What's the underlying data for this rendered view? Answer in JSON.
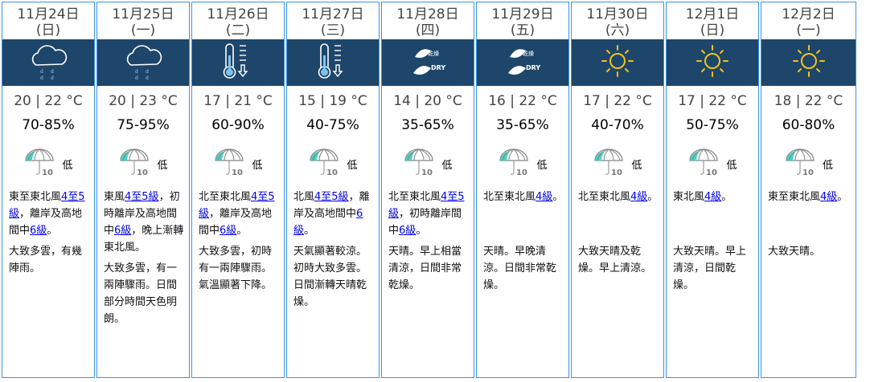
{
  "days": [
    {
      "date": "11月24日",
      "weekday": "(日)",
      "icon": "rain-cloud-icon",
      "temp": "20 | 22 °C",
      "humidity": "70-85%",
      "psr": "低",
      "wind": [
        {
          "t": "東至東北風"
        },
        {
          "t": "4至5級",
          "link": true
        },
        {
          "t": "，離岸及高地間中"
        },
        {
          "t": "6級",
          "link": true
        },
        {
          "t": "。"
        }
      ],
      "weather": "大致多雲，有幾陣雨。"
    },
    {
      "date": "11月25日",
      "weekday": "(一)",
      "icon": "rain-cloud-icon",
      "temp": "20 | 23 °C",
      "humidity": "75-95%",
      "psr": "低",
      "wind": [
        {
          "t": "東風"
        },
        {
          "t": "4至5級",
          "link": true
        },
        {
          "t": "，初時離岸及高地間中"
        },
        {
          "t": "6級",
          "link": true
        },
        {
          "t": "，晚上漸轉東北風。"
        }
      ],
      "weather": "大致多雲，有一兩陣驟雨。日間部分時間天色明朗。"
    },
    {
      "date": "11月26日",
      "weekday": "(二)",
      "icon": "cold-thermometer-icon",
      "temp": "17 | 21 °C",
      "humidity": "60-90%",
      "psr": "低",
      "wind": [
        {
          "t": "北至東北風"
        },
        {
          "t": "4至5級",
          "link": true
        },
        {
          "t": "，離岸及高地間中"
        },
        {
          "t": "6級",
          "link": true
        },
        {
          "t": "。"
        }
      ],
      "weather": "大致多雲，初時有一兩陣驟雨。氣溫顯著下降。"
    },
    {
      "date": "11月27日",
      "weekday": "(三)",
      "icon": "cold-thermometer-icon",
      "temp": "15 | 19 °C",
      "humidity": "40-75%",
      "psr": "低",
      "wind": [
        {
          "t": "北風"
        },
        {
          "t": "4至5級",
          "link": true
        },
        {
          "t": "，離岸及高地間中"
        },
        {
          "t": "6級",
          "link": true
        },
        {
          "t": "。"
        }
      ],
      "weather": "天氣顯著較涼。初時大致多雲。日間漸轉天晴乾燥。"
    },
    {
      "date": "11月28日",
      "weekday": "(四)",
      "icon": "dry-icon",
      "icon_text": "乾燥",
      "icon_label": "DRY",
      "temp": "14 | 20 °C",
      "humidity": "35-65%",
      "psr": "低",
      "wind": [
        {
          "t": "北至東北風"
        },
        {
          "t": "4至5級",
          "link": true
        },
        {
          "t": "，初時離岸間中"
        },
        {
          "t": "6級",
          "link": true
        },
        {
          "t": "。"
        }
      ],
      "weather": "天晴。早上相當清涼，日間非常乾燥。"
    },
    {
      "date": "11月29日",
      "weekday": "(五)",
      "icon": "dry-icon",
      "icon_text": "乾燥",
      "icon_label": "DRY",
      "temp": "16 | 22 °C",
      "humidity": "35-65%",
      "psr": "低",
      "wind": [
        {
          "t": "北至東北風"
        },
        {
          "t": "4級",
          "link": true
        },
        {
          "t": "。"
        }
      ],
      "weather": "天晴。早晚清涼。日間非常乾燥。"
    },
    {
      "date": "11月30日",
      "weekday": "(六)",
      "icon": "sun-icon",
      "temp": "17 | 22 °C",
      "humidity": "40-70%",
      "psr": "低",
      "wind": [
        {
          "t": "北至東北風"
        },
        {
          "t": "4級",
          "link": true
        },
        {
          "t": "。"
        }
      ],
      "weather": "大致天晴及乾燥。早上清涼。"
    },
    {
      "date": "12月1日",
      "weekday": "(日)",
      "icon": "sun-icon",
      "temp": "17 | 22 °C",
      "humidity": "50-75%",
      "psr": "低",
      "wind": [
        {
          "t": "東北風"
        },
        {
          "t": "4級",
          "link": true
        },
        {
          "t": "。"
        }
      ],
      "weather": "大致天晴。早上清涼，日間乾燥。"
    },
    {
      "date": "12月2日",
      "weekday": "(一)",
      "icon": "sun-icon",
      "temp": "18 | 22 °C",
      "humidity": "60-80%",
      "psr": "低",
      "wind": [
        {
          "t": "東至東北風"
        },
        {
          "t": "4級",
          "link": true
        },
        {
          "t": "。"
        }
      ],
      "weather": "大致天晴。"
    }
  ],
  "psr_icon_number": "10",
  "colors": {
    "band": "#1e466b",
    "border": "#3b94e8",
    "link": "#0000ee",
    "umbrella": "#3fd6c6"
  }
}
